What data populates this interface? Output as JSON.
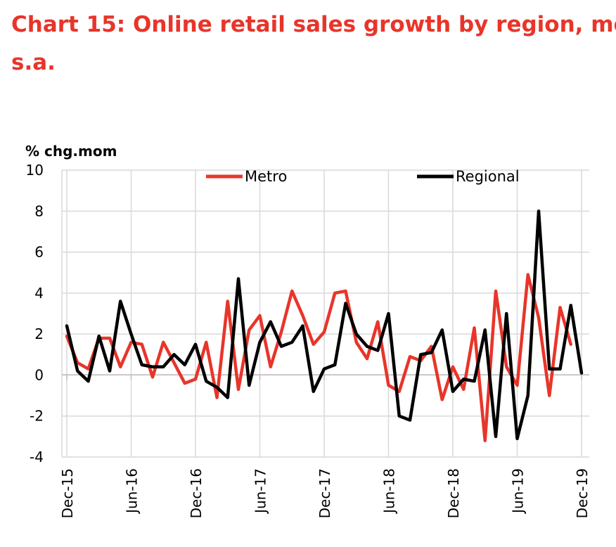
{
  "title": {
    "line1": "Chart 15: Online retail sales growth by region, mo",
    "line2": "s.a."
  },
  "chart_data": {
    "type": "line",
    "ylabel": "% chg.mom",
    "ylim": [
      -4,
      10
    ],
    "yticks": [
      "10",
      "8",
      "6",
      "4",
      "2",
      "0",
      "-2",
      "-4"
    ],
    "grid": true,
    "legend_position": "top",
    "x_tick_labels": [
      "Dec-15",
      "Jun-16",
      "Dec-16",
      "Jun-17",
      "Dec-17",
      "Jun-18",
      "Dec-18",
      "Jun-19",
      "Dec-19"
    ],
    "x_tick_every": 6,
    "x_start": "Dec-15",
    "series": [
      {
        "name": "Metro",
        "color": "#e8352a",
        "values": [
          1.9,
          0.6,
          0.3,
          1.8,
          1.8,
          0.4,
          1.6,
          1.5,
          -0.1,
          1.6,
          0.6,
          -0.4,
          -0.2,
          1.6,
          -1.1,
          3.6,
          -0.7,
          2.2,
          2.9,
          0.4,
          2.1,
          4.1,
          2.9,
          1.5,
          2.1,
          4.0,
          4.1,
          1.6,
          0.8,
          2.6,
          -0.5,
          -0.8,
          0.9,
          0.7,
          1.4,
          -1.2,
          0.4,
          -0.7,
          2.3,
          -3.2,
          4.1,
          0.4,
          -0.5,
          4.9,
          2.8,
          -1.0,
          3.3,
          1.5
        ]
      },
      {
        "name": "Regional",
        "color": "#000000",
        "values": [
          2.4,
          0.2,
          -0.3,
          1.9,
          0.2,
          3.6,
          2.0,
          0.5,
          0.4,
          0.4,
          1.0,
          0.5,
          1.5,
          -0.3,
          -0.6,
          -1.1,
          4.7,
          -0.5,
          1.6,
          2.6,
          1.4,
          1.6,
          2.4,
          -0.8,
          0.3,
          0.5,
          3.5,
          2.0,
          1.4,
          1.2,
          3.0,
          -2.0,
          -2.2,
          1.0,
          1.1,
          2.2,
          -0.8,
          -0.2,
          -0.3,
          2.2,
          -3.0,
          3.0,
          -3.1,
          -1.0,
          8.0,
          0.3,
          0.3,
          3.4,
          0.1
        ]
      }
    ]
  }
}
